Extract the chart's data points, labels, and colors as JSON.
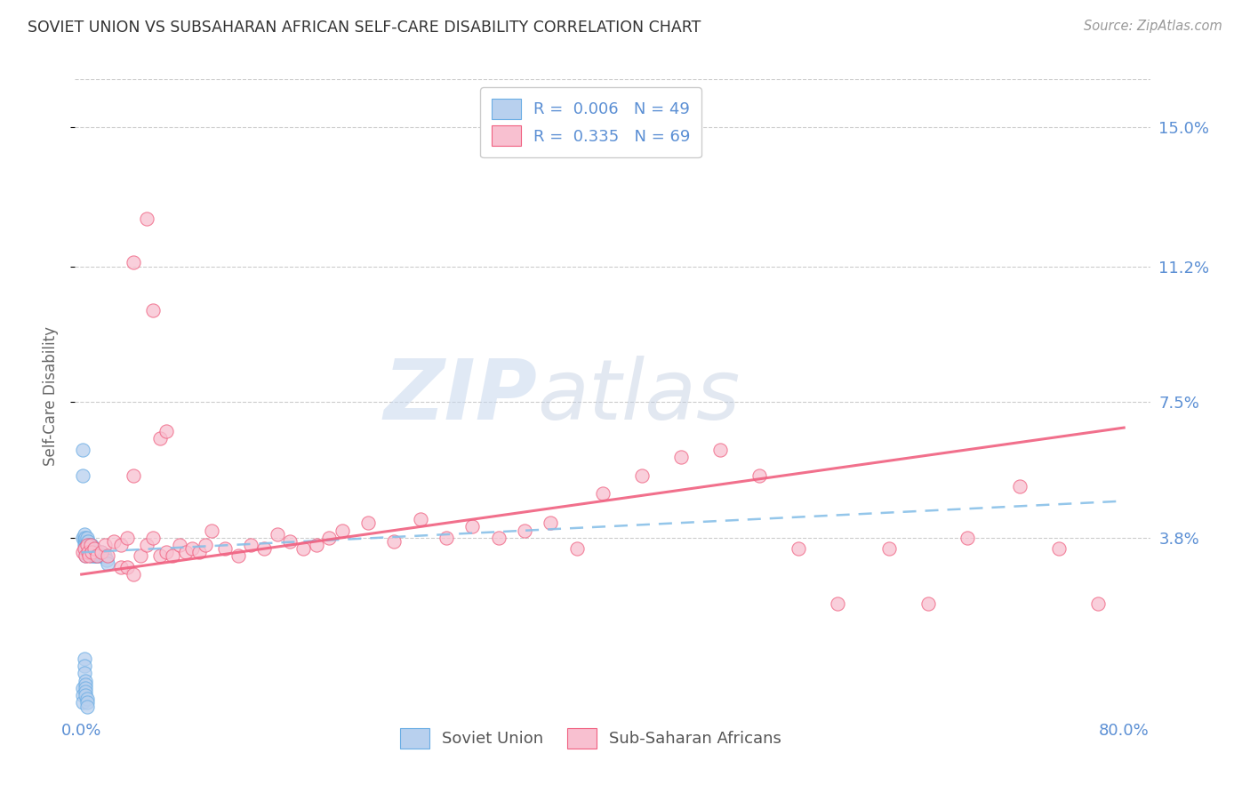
{
  "title": "SOVIET UNION VS SUBSAHARAN AFRICAN SELF-CARE DISABILITY CORRELATION CHART",
  "source": "Source: ZipAtlas.com",
  "ylabel": "Self-Care Disability",
  "xlim": [
    -0.005,
    0.82
  ],
  "ylim": [
    -0.01,
    0.163
  ],
  "yticks": [
    0.038,
    0.075,
    0.112,
    0.15
  ],
  "ytick_labels": [
    "3.8%",
    "7.5%",
    "11.2%",
    "15.0%"
  ],
  "xticks": [
    0.0,
    0.1,
    0.2,
    0.3,
    0.4,
    0.5,
    0.6,
    0.7,
    0.8
  ],
  "xtick_labels": [
    "0.0%",
    "",
    "",
    "",
    "",
    "",
    "",
    "",
    "80.0%"
  ],
  "color_soviet": "#b8d0ee",
  "color_soviet_edge": "#6aade4",
  "color_africa": "#f8c0d0",
  "color_africa_edge": "#f06080",
  "color_soviet_line": "#88c0e8",
  "color_africa_line": "#f06080",
  "color_axis_labels": "#5b8fd4",
  "color_title": "#333333",
  "watermark_zip": "ZIP",
  "watermark_atlas": "atlas",
  "soviet_x": [
    0.001,
    0.001,
    0.001,
    0.002,
    0.002,
    0.002,
    0.002,
    0.003,
    0.003,
    0.003,
    0.003,
    0.003,
    0.003,
    0.004,
    0.004,
    0.004,
    0.004,
    0.005,
    0.005,
    0.005,
    0.005,
    0.006,
    0.006,
    0.006,
    0.007,
    0.007,
    0.007,
    0.007,
    0.008,
    0.008,
    0.008,
    0.009,
    0.009,
    0.01,
    0.01,
    0.01,
    0.011,
    0.011,
    0.012,
    0.012,
    0.013,
    0.014,
    0.015,
    0.015,
    0.016,
    0.017,
    0.018,
    0.019,
    0.02
  ],
  "soviet_y": [
    0.055,
    0.062,
    0.038,
    0.037,
    0.038,
    0.039,
    0.036,
    0.034,
    0.036,
    0.037,
    0.038,
    0.035,
    0.033,
    0.034,
    0.036,
    0.037,
    0.038,
    0.034,
    0.035,
    0.036,
    0.037,
    0.034,
    0.035,
    0.036,
    0.034,
    0.035,
    0.036,
    0.033,
    0.035,
    0.036,
    0.034,
    0.035,
    0.033,
    0.035,
    0.034,
    0.033,
    0.034,
    0.033,
    0.034,
    0.033,
    0.034,
    0.033,
    0.034,
    0.033,
    0.033,
    0.033,
    0.033,
    0.032,
    0.031
  ],
  "soviet_y_low": [
    -0.003,
    -0.005,
    -0.007,
    0.005,
    0.003,
    0.001,
    -0.001,
    -0.002,
    -0.003,
    -0.004,
    -0.005,
    -0.006,
    -0.007,
    -0.008
  ],
  "soviet_x_low": [
    0.001,
    0.001,
    0.001,
    0.002,
    0.002,
    0.002,
    0.003,
    0.003,
    0.003,
    0.003,
    0.003,
    0.004,
    0.004,
    0.004
  ],
  "africa_x": [
    0.001,
    0.002,
    0.003,
    0.004,
    0.005,
    0.006,
    0.007,
    0.008,
    0.01,
    0.012,
    0.015,
    0.018,
    0.02,
    0.025,
    0.03,
    0.035,
    0.04,
    0.045,
    0.05,
    0.055,
    0.06,
    0.065,
    0.07,
    0.075,
    0.08,
    0.085,
    0.09,
    0.095,
    0.1,
    0.11,
    0.12,
    0.13,
    0.14,
    0.15,
    0.16,
    0.17,
    0.18,
    0.19,
    0.2,
    0.22,
    0.24,
    0.26,
    0.28,
    0.3,
    0.32,
    0.34,
    0.36,
    0.38,
    0.4,
    0.43,
    0.46,
    0.49,
    0.52,
    0.55,
    0.58,
    0.62,
    0.65,
    0.68,
    0.72,
    0.75,
    0.78,
    0.04,
    0.05,
    0.055,
    0.06,
    0.065,
    0.03,
    0.035,
    0.04
  ],
  "africa_y": [
    0.034,
    0.035,
    0.033,
    0.036,
    0.034,
    0.033,
    0.036,
    0.034,
    0.035,
    0.033,
    0.034,
    0.036,
    0.033,
    0.037,
    0.036,
    0.038,
    0.055,
    0.033,
    0.036,
    0.038,
    0.033,
    0.034,
    0.033,
    0.036,
    0.034,
    0.035,
    0.034,
    0.036,
    0.04,
    0.035,
    0.033,
    0.036,
    0.035,
    0.039,
    0.037,
    0.035,
    0.036,
    0.038,
    0.04,
    0.042,
    0.037,
    0.043,
    0.038,
    0.041,
    0.038,
    0.04,
    0.042,
    0.035,
    0.05,
    0.055,
    0.06,
    0.062,
    0.055,
    0.035,
    0.02,
    0.035,
    0.02,
    0.038,
    0.052,
    0.035,
    0.02,
    0.113,
    0.125,
    0.1,
    0.065,
    0.067,
    0.03,
    0.03,
    0.028
  ]
}
